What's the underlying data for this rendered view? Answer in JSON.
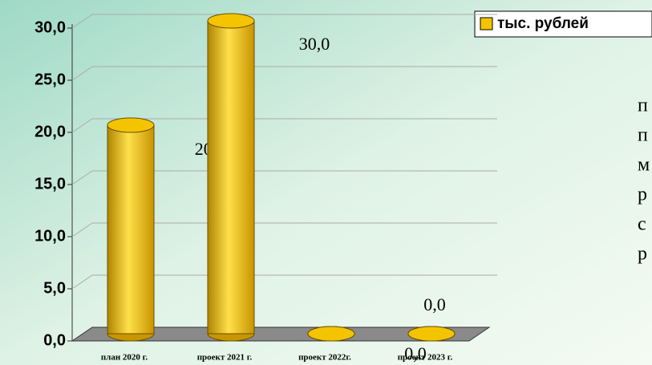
{
  "chart_data": {
    "type": "bar",
    "categories": [
      "план 2020 г.",
      "проект 2021 г.",
      "проект 2022г.",
      "проект 2023 г."
    ],
    "series": [
      {
        "name": "тыс. рублей",
        "color": "#f5c400",
        "values": [
          20,
          30,
          0,
          0
        ],
        "value_labels": [
          "20,0",
          "30,0",
          "0,0",
          "0,0"
        ]
      }
    ],
    "ylim": [
      0,
      30
    ],
    "yticks": [
      {
        "value": 0,
        "label": "0,0"
      },
      {
        "value": 5,
        "label": "5,0"
      },
      {
        "value": 10,
        "label": "10,0"
      },
      {
        "value": 15,
        "label": "15,0"
      },
      {
        "value": 20,
        "label": "20,0"
      },
      {
        "value": 25,
        "label": "25,0"
      },
      {
        "value": 30,
        "label": "30,0"
      }
    ],
    "grid": true,
    "legend": "top-right"
  },
  "side_text": [
    "п",
    "п",
    "м",
    "р",
    "с",
    "р"
  ]
}
